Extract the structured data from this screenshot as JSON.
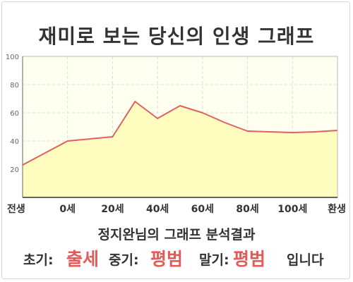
{
  "title": "재미로 보는 당신의 인생 그래프",
  "chart_data": {
    "type": "area",
    "x": [
      -20,
      0,
      20,
      30,
      40,
      50,
      60,
      70,
      80,
      90,
      100,
      110,
      120
    ],
    "values": [
      23,
      40,
      43,
      68,
      56,
      65,
      60,
      53,
      47,
      46.5,
      46,
      46.5,
      47.5
    ],
    "xticks": [
      {
        "x": -20,
        "label": "전생"
      },
      {
        "x": 0,
        "label": "0세"
      },
      {
        "x": 20,
        "label": "20세"
      },
      {
        "x": 40,
        "label": "40세"
      },
      {
        "x": 60,
        "label": "60세"
      },
      {
        "x": 80,
        "label": "80세"
      },
      {
        "x": 100,
        "label": "100세"
      },
      {
        "x": 120,
        "label": "환생"
      }
    ],
    "yticks": [
      20,
      40,
      60,
      80,
      100
    ],
    "xlim": [
      -20,
      120
    ],
    "ylim": [
      0,
      100
    ],
    "grid": true,
    "colors": {
      "fill": "#fffcc0",
      "plot_bg": "#fffff0",
      "line": "#e06060",
      "grid": "#dddddd"
    }
  },
  "result": {
    "subtitle": "정지완님의 그래프 분석결과",
    "early_label": "초기:",
    "early_value": "출세",
    "middle_label": "중기:",
    "middle_value": "평범",
    "late_label": "말기:",
    "late_value": "평범",
    "suffix": "입니다"
  }
}
